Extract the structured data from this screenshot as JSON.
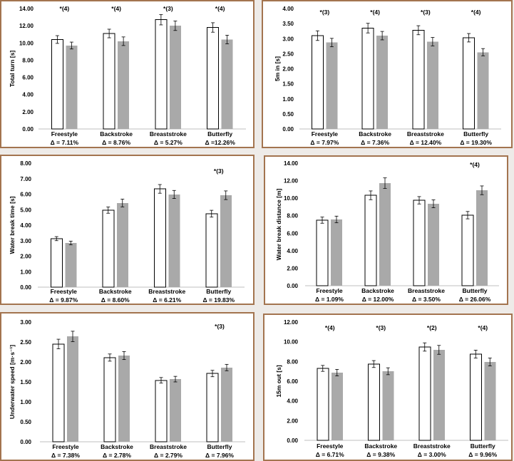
{
  "chart_data": [
    {
      "type": "bar",
      "ylabel": "Total turn [s]",
      "ylim": [
        0,
        14
      ],
      "yticks": [
        "0.00",
        "2.00",
        "4.00",
        "6.00",
        "8.00",
        "10.00",
        "12.00",
        "14.00"
      ],
      "grid": false,
      "categories": [
        "Freestyle",
        "Backstroke",
        "Breaststroke",
        "Butterfly"
      ],
      "category_annotations": [
        "Δ = 7.11%",
        "Δ = 8.76%",
        "Δ = 5.27%",
        "Δ =12.26%"
      ],
      "significance_labels": [
        "*(4)",
        "*(4)",
        "*(3)",
        "*(4)"
      ],
      "series": [
        {
          "values": [
            10.4,
            11.1,
            12.7,
            11.8
          ],
          "errors": [
            0.45,
            0.5,
            0.6,
            0.55
          ],
          "color": "#ffffff"
        },
        {
          "values": [
            9.7,
            10.2,
            12.0,
            10.4
          ],
          "errors": [
            0.4,
            0.5,
            0.55,
            0.5
          ],
          "color": "#a9a9a9"
        }
      ]
    },
    {
      "type": "bar",
      "ylabel": "5m in [s]",
      "ylim": [
        0,
        4
      ],
      "yticks": [
        "0.00",
        "0.50",
        "1.00",
        "1.50",
        "2.00",
        "2.50",
        "3.00",
        "3.50",
        "4.00"
      ],
      "grid": false,
      "categories": [
        "Freestyle",
        "Backstroke",
        "Breaststroke",
        "Butterfly"
      ],
      "category_annotations": [
        "Δ = 7.97%",
        "Δ = 7.36%",
        "Δ = 12.40%",
        "Δ = 19.30%"
      ],
      "significance_labels": [
        "*(3)",
        "*(4)",
        "*(3)",
        "*(4)"
      ],
      "series": [
        {
          "values": [
            3.1,
            3.35,
            3.28,
            3.03
          ],
          "errors": [
            0.16,
            0.16,
            0.15,
            0.14
          ],
          "color": "#ffffff"
        },
        {
          "values": [
            2.87,
            3.1,
            2.9,
            2.55
          ],
          "errors": [
            0.14,
            0.14,
            0.14,
            0.12
          ],
          "color": "#a9a9a9"
        }
      ]
    },
    {
      "type": "bar",
      "ylabel": "Water break time [s]",
      "ylim": [
        0,
        8
      ],
      "yticks": [
        "0.00",
        "1.00",
        "2.00",
        "3.00",
        "4.00",
        "5.00",
        "6.00",
        "7.00",
        "8.00"
      ],
      "grid": false,
      "categories": [
        "Freestyle",
        "Backstroke",
        "Breaststroke",
        "Butterfly"
      ],
      "category_annotations": [
        "Δ = 9.87%",
        "Δ = 8.60%",
        "Δ = 6.21%",
        "Δ = 19.83%"
      ],
      "significance_labels": [
        null,
        null,
        null,
        "*(3)"
      ],
      "series": [
        {
          "values": [
            3.13,
            4.97,
            6.34,
            4.74
          ],
          "errors": [
            0.13,
            0.2,
            0.28,
            0.22
          ],
          "color": "#ffffff"
        },
        {
          "values": [
            2.85,
            5.43,
            5.98,
            5.93
          ],
          "errors": [
            0.12,
            0.25,
            0.26,
            0.28
          ],
          "color": "#a9a9a9"
        }
      ]
    },
    {
      "type": "bar",
      "ylabel": "Water break distance [m]",
      "ylim": [
        0,
        14
      ],
      "yticks": [
        "0.00",
        "2.00",
        "4.00",
        "6.00",
        "8.00",
        "10.00",
        "12.00",
        "14.00"
      ],
      "grid": false,
      "categories": [
        "Freestyle",
        "Backstroke",
        "Breaststroke",
        "Butterfly"
      ],
      "category_annotations": [
        "Δ = 1.09%",
        "Δ = 12.00%",
        "Δ = 3.50%",
        "Δ = 26.06%"
      ],
      "significance_labels": [
        null,
        null,
        null,
        "*(4)"
      ],
      "series": [
        {
          "values": [
            7.49,
            10.33,
            9.76,
            8.06
          ],
          "errors": [
            0.35,
            0.5,
            0.42,
            0.42
          ],
          "color": "#ffffff"
        },
        {
          "values": [
            7.57,
            11.72,
            9.36,
            10.9
          ],
          "errors": [
            0.38,
            0.6,
            0.45,
            0.5
          ],
          "color": "#a9a9a9"
        }
      ]
    },
    {
      "type": "bar",
      "ylabel": "Underwater speed [m·s⁻¹]",
      "ylim": [
        0,
        3
      ],
      "yticks": [
        "0.00",
        "0.50",
        "1.00",
        "1.50",
        "2.00",
        "2.50",
        "3.00"
      ],
      "grid": false,
      "categories": [
        "Freestyle",
        "Backstroke",
        "Breaststroke",
        "Butterfly"
      ],
      "category_annotations": [
        "Δ = 7.38%",
        "Δ = 2.78%",
        "Δ = 2.79%",
        "Δ = 7.96%"
      ],
      "significance_labels": [
        null,
        null,
        null,
        "*(3)"
      ],
      "series": [
        {
          "values": [
            2.45,
            2.11,
            1.54,
            1.71
          ],
          "errors": [
            0.12,
            0.09,
            0.07,
            0.08
          ],
          "color": "#ffffff"
        },
        {
          "values": [
            2.64,
            2.16,
            1.57,
            1.86
          ],
          "errors": [
            0.13,
            0.1,
            0.07,
            0.08
          ],
          "color": "#a9a9a9"
        }
      ]
    },
    {
      "type": "bar",
      "ylabel": "15m out [s]",
      "ylim": [
        0,
        12
      ],
      "yticks": [
        "0.00",
        "2.00",
        "4.00",
        "6.00",
        "8.00",
        "10.00",
        "12.00"
      ],
      "grid": false,
      "categories": [
        "Freestyle",
        "Backstroke",
        "Breaststroke",
        "Butterfly"
      ],
      "category_annotations": [
        "Δ = 6.71%",
        "Δ = 9.38%",
        "Δ = 3.00%",
        "Δ = 9.96%"
      ],
      "significance_labels": [
        "*(4)",
        "*(3)",
        "*(2)",
        "*(4)"
      ],
      "series": [
        {
          "values": [
            7.3,
            7.74,
            9.47,
            8.75
          ],
          "errors": [
            0.3,
            0.35,
            0.42,
            0.4
          ],
          "color": "#ffffff"
        },
        {
          "values": [
            6.87,
            7.01,
            9.18,
            7.95
          ],
          "errors": [
            0.33,
            0.35,
            0.45,
            0.4
          ],
          "color": "#a9a9a9"
        }
      ]
    }
  ]
}
